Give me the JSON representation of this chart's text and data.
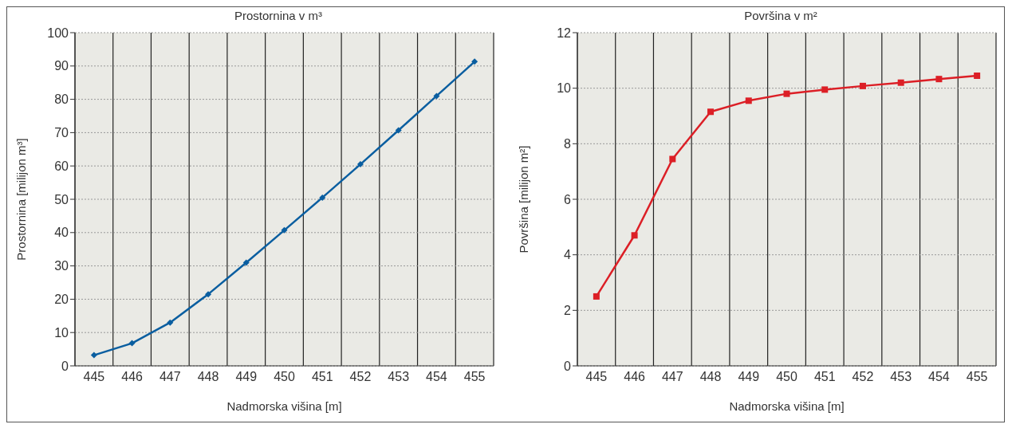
{
  "chart_data": [
    {
      "type": "line",
      "title": "Prostornina v m³",
      "xlabel": "Nadmorska višina [m]",
      "ylabel": "Prostornina [milijon m³]",
      "categories": [
        "445",
        "446",
        "447",
        "448",
        "449",
        "450",
        "451",
        "452",
        "453",
        "454",
        "455"
      ],
      "series": [
        {
          "color": "#0a5ea0",
          "values": [
            3.2,
            6.8,
            13,
            21.5,
            31,
            40.7,
            50.5,
            60.5,
            70.7,
            81,
            91.3
          ]
        }
      ],
      "ylim": [
        0,
        100
      ],
      "yticks": [
        0,
        10,
        20,
        30,
        40,
        50,
        60,
        70,
        80,
        90,
        100
      ],
      "grid": true,
      "marker": "diamond"
    },
    {
      "type": "line",
      "title": "Površina v m²",
      "xlabel": "Nadmorska višina [m]",
      "ylabel": "Površina [milijon m²]",
      "categories": [
        "445",
        "446",
        "447",
        "448",
        "449",
        "450",
        "451",
        "452",
        "453",
        "454",
        "455"
      ],
      "series": [
        {
          "color": "#dc1f26",
          "values": [
            2.5,
            4.7,
            7.45,
            9.15,
            9.55,
            9.8,
            9.95,
            10.08,
            10.2,
            10.33,
            10.45
          ]
        }
      ],
      "ylim": [
        0,
        12
      ],
      "yticks": [
        0,
        2,
        4,
        6,
        8,
        10,
        12
      ],
      "grid": true,
      "marker": "square"
    }
  ]
}
